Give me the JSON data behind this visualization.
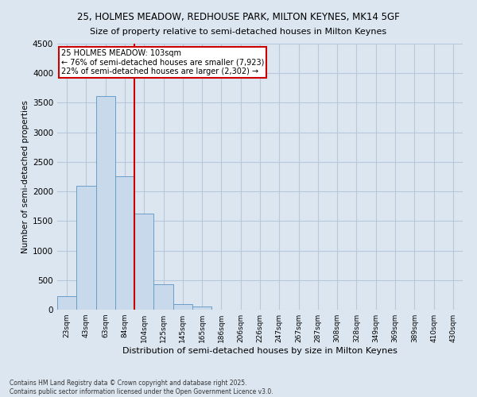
{
  "title_line1": "25, HOLMES MEADOW, REDHOUSE PARK, MILTON KEYNES, MK14 5GF",
  "title_line2": "Size of property relative to semi-detached houses in Milton Keynes",
  "xlabel": "Distribution of semi-detached houses by size in Milton Keynes",
  "ylabel": "Number of semi-detached properties",
  "footer_line1": "Contains HM Land Registry data © Crown copyright and database right 2025.",
  "footer_line2": "Contains public sector information licensed under the Open Government Licence v3.0.",
  "annotation_line1": "25 HOLMES MEADOW: 103sqm",
  "annotation_line2": "← 76% of semi-detached houses are smaller (7,923)",
  "annotation_line3": "22% of semi-detached houses are larger (2,302) →",
  "property_line_x": 4,
  "categories": [
    "23sqm",
    "43sqm",
    "63sqm",
    "84sqm",
    "104sqm",
    "125sqm",
    "145sqm",
    "165sqm",
    "186sqm",
    "206sqm",
    "226sqm",
    "247sqm",
    "267sqm",
    "287sqm",
    "308sqm",
    "328sqm",
    "349sqm",
    "369sqm",
    "389sqm",
    "410sqm",
    "430sqm"
  ],
  "bar_values": [
    230,
    2100,
    3620,
    2260,
    1620,
    430,
    100,
    55,
    0,
    0,
    0,
    0,
    0,
    0,
    0,
    0,
    0,
    0,
    0,
    0,
    0
  ],
  "bar_color": "#c9d9ec",
  "bar_edge_color": "#6a9fc8",
  "grid_color": "#b8c8dc",
  "background_color": "#dce6f0",
  "annotation_box_edge": "#cc0000",
  "property_line_color": "#cc0000",
  "ylim": [
    0,
    4500
  ],
  "yticks": [
    0,
    500,
    1000,
    1500,
    2000,
    2500,
    3000,
    3500,
    4000,
    4500
  ]
}
